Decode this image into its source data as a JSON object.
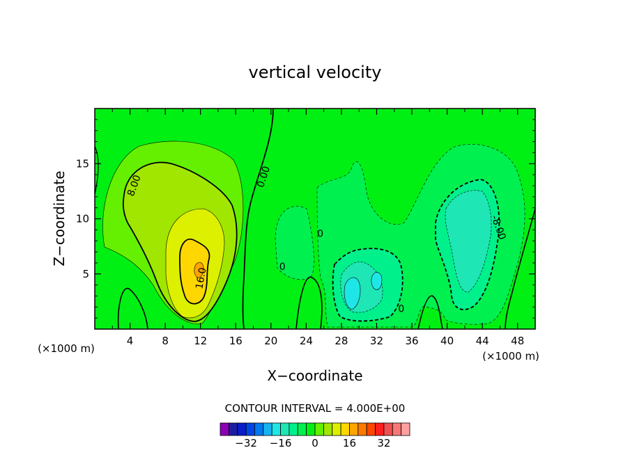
{
  "chart_data": {
    "type": "heatmap",
    "title": "vertical velocity",
    "xlabel": "X−coordinate",
    "ylabel": "Z−coordinate",
    "x_unit_left": "(×1000 m)",
    "x_unit_right": "(×1000 m)",
    "xlim": [
      0,
      50
    ],
    "ylim": [
      0,
      20
    ],
    "x_ticks": [
      4,
      8,
      12,
      16,
      20,
      24,
      28,
      32,
      36,
      40,
      44,
      48
    ],
    "y_ticks": [
      5,
      10,
      15
    ],
    "contour_interval_label": "CONTOUR INTERVAL = 4.000E+00",
    "contour_labels": [
      {
        "text": "8.00",
        "x": 4.5,
        "y": 13.0,
        "angle": -70
      },
      {
        "text": "0.00",
        "x": 19.2,
        "y": 13.8,
        "angle": -72
      },
      {
        "text": "16.0",
        "x": 12.1,
        "y": 4.6,
        "angle": -80
      },
      {
        "text": "0",
        "x": 25.6,
        "y": 8.6,
        "angle": 0
      },
      {
        "text": "0",
        "x": 21.3,
        "y": 5.6,
        "angle": 0
      },
      {
        "text": "0",
        "x": 34.8,
        "y": 1.8,
        "angle": 0
      },
      {
        "text": "-8.00",
        "x": 45.8,
        "y": 9.2,
        "angle": 70
      }
    ],
    "colorbar": {
      "colors": [
        "#8a00b4",
        "#1e1ea0",
        "#0a1ec8",
        "#0046e6",
        "#0078f0",
        "#14b4f0",
        "#1ee6e6",
        "#1ee6b4",
        "#00f08c",
        "#00f050",
        "#00f014",
        "#64f000",
        "#a0e600",
        "#dcf000",
        "#ffd700",
        "#ffa500",
        "#ff7800",
        "#ff4600",
        "#ff1e1e",
        "#f05050",
        "#f87878",
        "#ffa0a0"
      ],
      "ticks": [
        "−32",
        "−16",
        "0",
        "16",
        "32"
      ],
      "tick_values": [
        -32,
        -16,
        0,
        16,
        32
      ]
    },
    "regions": {
      "background": "#00f014",
      "pos_4_8": "#64f000",
      "pos_8_12": "#a0e600",
      "pos_12_16": "#dcf000",
      "pos_16_20": "#ffd700",
      "pos_20_24": "#ffa500",
      "neg_0_4": "#00f050",
      "neg_4_8": "#00f08c",
      "neg_8_12": "#1ee6b4",
      "neg_12_16": "#1ee6e6"
    }
  }
}
